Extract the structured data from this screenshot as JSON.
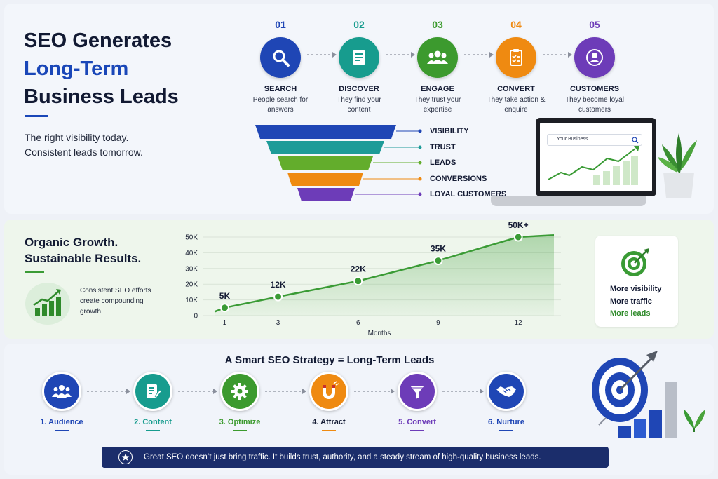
{
  "hero": {
    "title_line1": "SEO Generates",
    "title_line2": "Long-Term",
    "title_line3": "Business Leads",
    "subtitle_line1": "The right visibility today.",
    "subtitle_line2": "Consistent leads tomorrow."
  },
  "journey": [
    {
      "num": "01",
      "label": "SEARCH",
      "desc": "People search for answers",
      "color": "#1f46b5",
      "icon": "magnifier-icon"
    },
    {
      "num": "02",
      "label": "DISCOVER",
      "desc": "They find your content",
      "color": "#179c8e",
      "icon": "document-icon"
    },
    {
      "num": "03",
      "label": "ENGAGE",
      "desc": "They trust your expertise",
      "color": "#3c9a2e",
      "icon": "group-icon"
    },
    {
      "num": "04",
      "label": "CONVERT",
      "desc": "They take action & enquire",
      "color": "#ef8a11",
      "icon": "clipboard-icon"
    },
    {
      "num": "05",
      "label": "CUSTOMERS",
      "desc": "They become loyal customers",
      "color": "#6d3cb8",
      "icon": "user-icon"
    }
  ],
  "funnel": [
    {
      "label": "VISIBILITY",
      "color": "#1f46b5"
    },
    {
      "label": "TRUST",
      "color": "#1d9b98"
    },
    {
      "label": "LEADS",
      "color": "#63ad2c"
    },
    {
      "label": "CONVERSIONS",
      "color": "#ef8a11"
    },
    {
      "label": "LOYAL CUSTOMERS",
      "color": "#6d3cb8"
    }
  ],
  "laptop": {
    "search_text": "Your Business"
  },
  "growth": {
    "title_line1": "Organic Growth.",
    "title_line2": "Sustainable Results.",
    "desc": "Consistent SEO efforts create compounding growth.",
    "card_line1": "More visibility",
    "card_line2": "More traffic",
    "card_line3": "More leads"
  },
  "chart_data": {
    "type": "area",
    "xlabel": "Months",
    "ylabel": "",
    "x": [
      1,
      3,
      6,
      9,
      12
    ],
    "values": [
      5000,
      12000,
      22000,
      35000,
      50000
    ],
    "point_labels": [
      "5K",
      "12K",
      "22K",
      "35K",
      "50K+"
    ],
    "y_ticks": [
      "0",
      "10K",
      "20K",
      "30K",
      "40K",
      "50K"
    ],
    "x_ticks": [
      "1",
      "3",
      "6",
      "9",
      "12"
    ],
    "ylim": [
      0,
      50000
    ],
    "color": "#3a9b35"
  },
  "strategy": {
    "title": "A Smart SEO Strategy = Long-Term Leads",
    "steps": [
      {
        "label": "1. Audience",
        "color": "#1f46b5",
        "icon": "audience-icon"
      },
      {
        "label": "2. Content",
        "color": "#179c8e",
        "icon": "edit-document-icon"
      },
      {
        "label": "3. Optimize",
        "color": "#3c9a2e",
        "icon": "gear-icon"
      },
      {
        "label": "4. Attract",
        "color": "#ef8a11",
        "icon": "magnet-icon"
      },
      {
        "label": "5. Convert",
        "color": "#6d3cb8",
        "icon": "funnel-icon"
      },
      {
        "label": "6. Nurture",
        "color": "#1f46b5",
        "icon": "handshake-icon"
      }
    ],
    "banner": "Great SEO doesn’t just bring traffic. It builds trust, authority, and a steady stream of high-quality business leads."
  }
}
